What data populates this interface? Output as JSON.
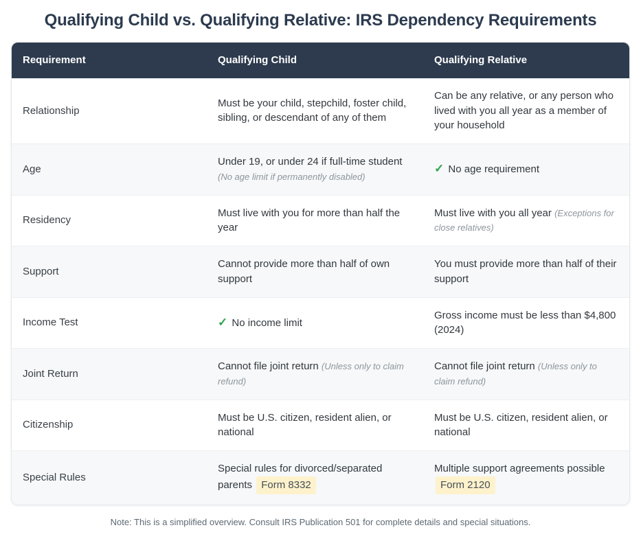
{
  "page": {
    "title": "Qualifying Child vs. Qualifying Relative: IRS Dependency Requirements",
    "footnote": "Note: This is a simplified overview. Consult IRS Publication 501 for complete details and special situations."
  },
  "icons": {
    "check": "✓"
  },
  "colors": {
    "header_bg": "#2e3b4e",
    "title_text": "#2c3b4f",
    "stripe_bg": "#f6f8f9",
    "check_green": "#2ea44f",
    "badge_bg": "#fdf2cc",
    "note_gray": "#8e959c"
  },
  "table": {
    "columns": [
      "Requirement",
      "Qualifying Child",
      "Qualifying Relative"
    ],
    "rows": [
      {
        "label": "Relationship",
        "child": {
          "text": "Must be your child, stepchild, foster child, sibling, or descendant of any of them"
        },
        "relative": {
          "text": "Can be any relative, or any person who lived with you all year as a member of your household"
        }
      },
      {
        "label": "Age",
        "child": {
          "text": "Under 19, or under 24 if full-time student",
          "note": "(No age limit if permanently disabled)"
        },
        "relative": {
          "text": "No age requirement"
        }
      },
      {
        "label": "Residency",
        "child": {
          "text": "Must live with you for more than half the year"
        },
        "relative": {
          "text": "Must live with you all year",
          "note": "(Exceptions for close relatives)"
        }
      },
      {
        "label": "Support",
        "child": {
          "text": "Cannot provide more than half of own support"
        },
        "relative": {
          "text": "You must provide more than half of their support"
        }
      },
      {
        "label": "Income Test",
        "child": {
          "text": "No income limit"
        },
        "relative": {
          "text": "Gross income must be less than $4,800 (2024)"
        }
      },
      {
        "label": "Joint Return",
        "child": {
          "text": "Cannot file joint return",
          "note": "(Unless only to claim refund)"
        },
        "relative": {
          "text": "Cannot file joint return",
          "note": "(Unless only to claim refund)"
        }
      },
      {
        "label": "Citizenship",
        "child": {
          "text": "Must be U.S. citizen, resident alien, or national"
        },
        "relative": {
          "text": "Must be U.S. citizen, resident alien, or national"
        }
      },
      {
        "label": "Special Rules",
        "child": {
          "text": "Special rules for divorced/separated parents",
          "badge": "Form 8332"
        },
        "relative": {
          "text": "Multiple support agreements possible",
          "badge": "Form 2120"
        }
      }
    ]
  }
}
